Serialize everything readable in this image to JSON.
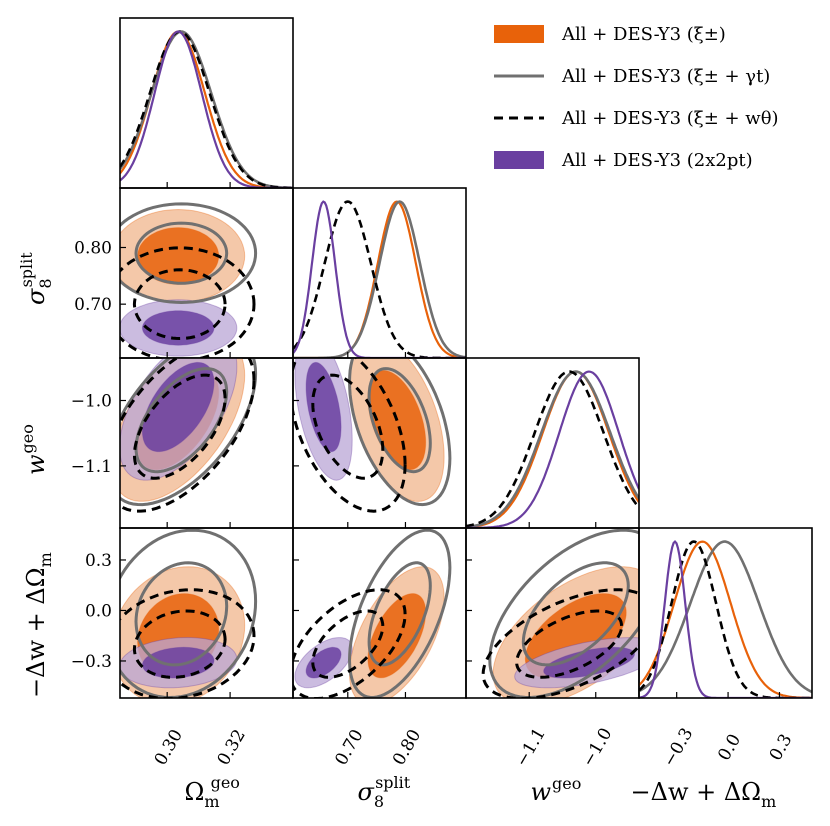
{
  "chart_data": {
    "type": "corner-plot",
    "title": "",
    "parameters": [
      {
        "key": "om",
        "label_main": "Ω",
        "label_sub": "m",
        "label_sup": "geo",
        "range": [
          0.285,
          0.34
        ],
        "ticks": [
          0.3,
          0.32
        ],
        "tick_labels": [
          "0.30",
          "0.32"
        ]
      },
      {
        "key": "s8",
        "label_main": "σ",
        "label_sub": "8",
        "label_sup": "split",
        "range": [
          0.605,
          0.905
        ],
        "ticks": [
          0.7,
          0.8
        ],
        "tick_labels": [
          "0.70",
          "0.80"
        ]
      },
      {
        "key": "w",
        "label_main": "w",
        "label_sub": "",
        "label_sup": "geo",
        "range": [
          -1.195,
          -0.935
        ],
        "ticks": [
          -1.1,
          -1.0
        ],
        "tick_labels": [
          "−1.1",
          "−1.0"
        ]
      },
      {
        "key": "dw",
        "label_main": "−Δw + ΔΩ",
        "label_sub": "m",
        "label_sup": "",
        "range": [
          -0.52,
          0.49
        ],
        "ticks": [
          -0.3,
          0.0,
          0.3
        ],
        "tick_labels": [
          "−0.3",
          "0.0",
          "0.3"
        ]
      }
    ],
    "series": [
      {
        "name": "All + DES-Y3 (ξ±)",
        "legend_label": "All + DES-Y3 (ξ±)",
        "style": "filled",
        "color": "#e8620a",
        "light_color": "#f0b58c",
        "mean": {
          "om": 0.3035,
          "s8": 0.785,
          "w": -1.03,
          "dw": -0.15
        },
        "sigma": {
          "om": 0.0085,
          "s8": 0.033,
          "w": 0.05,
          "dw": 0.165
        },
        "corr": {
          "om_s8": 0.0,
          "om_w": 0.55,
          "s8_w": -0.45,
          "om_dw": 0.15,
          "s8_dw": 0.55,
          "w_dw": 0.55
        }
      },
      {
        "name": "All + DES-Y3 (ξ± + γt)",
        "legend_label": "All + DES-Y3 (ξ± + γt)",
        "style": "line",
        "color": "#707070",
        "mean": {
          "om": 0.3045,
          "s8": 0.79,
          "w": -1.03,
          "dw": -0.02
        },
        "sigma": {
          "om": 0.0095,
          "s8": 0.035,
          "w": 0.052,
          "dw": 0.2
        },
        "corr": {
          "om_s8": 0.0,
          "om_w": 0.55,
          "s8_w": -0.45,
          "om_dw": 0.15,
          "s8_dw": 0.55,
          "w_dw": 0.55
        }
      },
      {
        "name": "All + DES-Y3 (ξ± + wθ)",
        "legend_label": "All + DES-Y3 (ξ± + wθ)",
        "style": "dashed",
        "color": "#000000",
        "mean": {
          "om": 0.304,
          "s8": 0.7,
          "w": -1.04,
          "dw": -0.2
        },
        "sigma": {
          "om": 0.0095,
          "s8": 0.04,
          "w": 0.052,
          "dw": 0.13
        },
        "corr": {
          "om_s8": 0.0,
          "om_w": 0.55,
          "s8_w": -0.45,
          "om_dw": 0.15,
          "s8_dw": 0.55,
          "w_dw": 0.55
        }
      },
      {
        "name": "All + DES-Y3 (2x2pt)",
        "legend_label": "All + DES-Y3 (2x2pt)",
        "style": "filled",
        "color": "#6a3fa0",
        "light_color": "#b9a6d6",
        "mean": {
          "om": 0.3035,
          "s8": 0.658,
          "w": -1.01,
          "dw": -0.31
        },
        "sigma": {
          "om": 0.0075,
          "s8": 0.02,
          "w": 0.045,
          "dw": 0.06
        },
        "corr": {
          "om_s8": 0.0,
          "om_w": 0.55,
          "s8_w": -0.45,
          "om_dw": 0.15,
          "s8_dw": 0.55,
          "w_dw": 0.55
        }
      }
    ],
    "legend_position": "top-right",
    "grid": false
  }
}
